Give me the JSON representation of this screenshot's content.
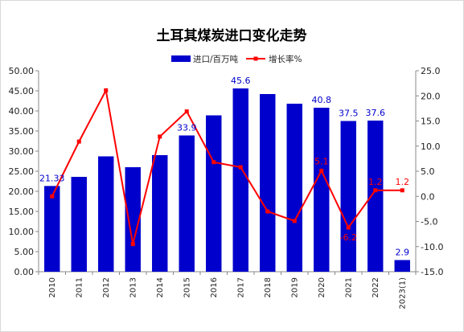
{
  "chart_data": {
    "type": "bar+line",
    "title": "土耳其煤炭进口变化走势",
    "categories": [
      "2010",
      "2011",
      "2012",
      "2013",
      "2014",
      "2015",
      "2016",
      "2017",
      "2018",
      "2019",
      "2020",
      "2021",
      "2022",
      "2023(1)"
    ],
    "series": [
      {
        "name": "进口/百万吨",
        "type": "bar",
        "axis": "left",
        "color": "#0000CC",
        "values": [
          21.33,
          23.6,
          28.7,
          26.0,
          29.0,
          33.9,
          38.9,
          45.6,
          44.2,
          41.8,
          40.8,
          37.5,
          37.6,
          2.9
        ],
        "labels": [
          "21.33",
          "",
          "",
          "",
          "",
          "33.9",
          "",
          "45.6",
          "",
          "",
          "40.8",
          "37.5",
          "37.6",
          "2.9"
        ]
      },
      {
        "name": "增长率%",
        "type": "line",
        "axis": "right",
        "color": "#FF0000",
        "values": [
          0.0,
          10.9,
          21.1,
          -9.5,
          11.9,
          16.9,
          6.8,
          5.8,
          -3.0,
          -4.9,
          5.1,
          -6.2,
          1.2,
          1.2
        ],
        "labels": [
          "",
          "",
          "",
          "",
          "",
          "",
          "",
          "",
          "",
          "",
          "5.1",
          "-6.2",
          "1.2",
          "1.2"
        ]
      }
    ],
    "y_left": {
      "min": 0,
      "max": 50,
      "step": 5,
      "tick_labels": [
        "0.00",
        "5.00",
        "10.00",
        "15.00",
        "20.00",
        "25.00",
        "30.00",
        "35.00",
        "40.00",
        "45.00",
        "50.00"
      ]
    },
    "y_right": {
      "min": -15,
      "max": 25,
      "step": 5,
      "tick_labels": [
        "-15.0",
        "-10.0",
        "-5.0",
        "0.0",
        "5.0",
        "10.0",
        "15.0",
        "20.0",
        "25.0"
      ]
    },
    "grid": false,
    "legend_position": "top-right"
  }
}
